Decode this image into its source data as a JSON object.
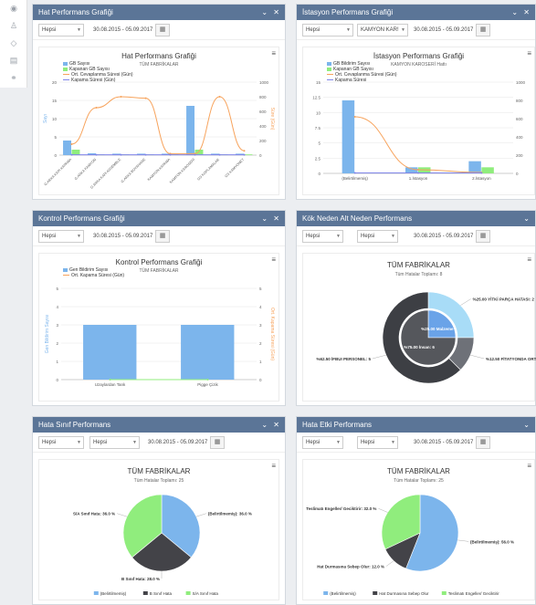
{
  "sidebar": {
    "icons": [
      "dashboard-icon",
      "users-icon",
      "tag-icon",
      "book-icon",
      "link-icon"
    ]
  },
  "panels": [
    {
      "title": "Hat Performans Grafiği",
      "controls": "⌄ ✕",
      "filters": {
        "select1": "Hepsi",
        "date": "30.08.2015 - 05.09.2017"
      },
      "chart": {
        "title": "Hat Performans Grafiği",
        "subtitle": "TÜM FABRİKALAR",
        "legend": [
          "GB Sayısı",
          "Kapanan GB Sayısı",
          "Ort. Cevaplanma Süresi (Gün)",
          "Kapama Süresi (Gün)"
        ],
        "ylabel": "Sayı",
        "y2label": "Süre (Gün)"
      }
    },
    {
      "title": "İstasyon Performans Grafiği",
      "controls": "⌄ ✕",
      "filters": {
        "select1": "Hepsi",
        "select2": "KAMYON KAR!",
        "date": "30.08.2015 - 05.09.2017"
      },
      "chart": {
        "title": "İstasyon Performans Grafiği",
        "subtitle": "KAMYON KAROSERİ Hattı",
        "legend": [
          "GB Bildirim Sayısı",
          "Kapanan GB Sayısı",
          "Ort. Cevaplanma Süresi (Gün)",
          "Kapama Süresi"
        ],
        "ylabel": "Sayı"
      }
    },
    {
      "title": "Kontrol Performans Grafiği",
      "controls": "⌄ ✕",
      "filters": {
        "select1": "Hepsi",
        "date": "30.08.2015 - 05.09.2017"
      },
      "chart": {
        "title": "Kontrol Performans Grafiği",
        "subtitle": "TÜM FABRİKALAR",
        "legend": [
          "Gen Bildirim Sayısı",
          "Ort. Kapama Süresi (Gün)"
        ],
        "ylabel": "Gen Bildirim Sayısı",
        "y2label": "Ort. Kapama Süresi (Gün)"
      }
    },
    {
      "title": "Kök Neden Alt Neden Performans",
      "controls": "⌄",
      "filters": {
        "select1": "Hepsi",
        "select2": "Hepsi",
        "date": "30.08.2015 - 05.09.2017"
      },
      "chart": {
        "title": "TÜM FABRİKALAR",
        "subtitle": "Tüm Hatalar Toplamı: 8"
      }
    },
    {
      "title": "Hata Sınıf Performans",
      "controls": "⌄ ✕",
      "filters": {
        "select1": "Hepsi",
        "select2": "Hepsi",
        "date": "30.08.2015 - 05.09.2017"
      },
      "chart": {
        "title": "TÜM FABRİKALAR",
        "subtitle": "Tüm Hatalar Toplamı: 25"
      }
    },
    {
      "title": "Hata Etki Performans",
      "controls": "⌄",
      "filters": {
        "select1": "Hepsi",
        "select2": "Hepsi",
        "date": "30.08.2015 - 05.09.2017"
      },
      "chart": {
        "title": "TÜM FABRİKALAR",
        "subtitle": "Tüm Hatalar Toplamı: 25"
      }
    }
  ],
  "chart_data": [
    {
      "type": "bar",
      "title": "Hat Performans Grafiği",
      "subtitle": "TÜM FABRİKALAR",
      "categories": [
        "G.ARKA KAPI KAPAMA",
        "G.ARKA KAMYON",
        "G.ARKA KAPI ASSEMBLE",
        "G.ARKA BOYAHANE",
        "KAMYON KAPAMA",
        "KAMYON KAROSERİ",
        "GS KOPLAMALAR",
        "GS KAMYONET"
      ],
      "series": [
        {
          "name": "GB Sayısı",
          "kind": "bar",
          "axis": "left",
          "values": [
            4,
            0.5,
            0.4,
            0.4,
            0.4,
            13.5,
            0.4,
            0.4
          ]
        },
        {
          "name": "Kapanan GB Sayısı",
          "kind": "bar",
          "axis": "left",
          "values": [
            1.5,
            0.2,
            0.2,
            0.2,
            0.2,
            1.5,
            0.2,
            0.2
          ]
        },
        {
          "name": "Ort. Cevaplanma Süresi (Gün)",
          "kind": "line",
          "axis": "right",
          "values": [
            150,
            650,
            800,
            780,
            20,
            20,
            800,
            60
          ]
        },
        {
          "name": "Kapama Süresi (Gün)",
          "kind": "line",
          "axis": "right",
          "values": [
            5,
            5,
            5,
            5,
            5,
            5,
            5,
            5
          ]
        }
      ],
      "ylim": [
        0,
        20
      ],
      "yticks": [
        0,
        5,
        10,
        15,
        20
      ],
      "y2lim": [
        0,
        1000
      ],
      "y2ticks": [
        0,
        200,
        400,
        600,
        800,
        1000
      ],
      "ylabel": "Sayı",
      "y2label": "Süre (Gün)"
    },
    {
      "type": "bar",
      "title": "İstasyon Performans Grafiği",
      "subtitle": "KAMYON KAROSERİ Hattı",
      "categories": [
        "(Belirtilmemiş)",
        "1.İstasyon",
        "2.İstasyon"
      ],
      "series": [
        {
          "name": "GB Bildirim Sayısı",
          "kind": "bar",
          "axis": "left",
          "values": [
            12,
            1,
            2
          ]
        },
        {
          "name": "Kapanan GB Sayısı",
          "kind": "bar",
          "axis": "left",
          "values": [
            0,
            1,
            1
          ]
        },
        {
          "name": "Ort. Cevaplanma Süresi (Gün)",
          "kind": "line",
          "axis": "right",
          "values": [
            620,
            40,
            10
          ]
        },
        {
          "name": "Kapama Süresi",
          "kind": "line",
          "axis": "right",
          "values": [
            5,
            5,
            5
          ]
        }
      ],
      "ylim": [
        0,
        15
      ],
      "yticks": [
        0,
        2.5,
        5,
        7.5,
        10,
        12.5,
        15
      ],
      "y2lim": [
        0,
        1000
      ],
      "y2ticks": [
        0,
        200,
        400,
        600,
        800,
        1000
      ]
    },
    {
      "type": "bar",
      "title": "Kontrol Performans Grafiği",
      "subtitle": "TÜM FABRİKALAR",
      "categories": [
        "Uzaylardan Tank",
        "Pigge Çizik"
      ],
      "series": [
        {
          "name": "Gen Bildirim Sayısı",
          "kind": "bar",
          "axis": "left",
          "values": [
            3,
            3
          ]
        },
        {
          "name": "Ort. Kapama Süresi (Gün)",
          "kind": "line",
          "axis": "right",
          "values": [
            0,
            0
          ]
        }
      ],
      "ylim": [
        0,
        5
      ],
      "yticks": [
        0,
        1,
        2,
        3,
        4,
        5
      ],
      "y2lim": [
        0,
        5
      ],
      "y2ticks": [
        0,
        1,
        2,
        3,
        4,
        5
      ]
    },
    {
      "type": "pie",
      "title": "TÜM FABRİKALAR",
      "subtitle": "Tüm Hatalar Toplamı: 8",
      "outer": [
        {
          "label": "%25.00 YİTKİ PARÇA HATASI: 2",
          "value": 25,
          "color": "#a8dcf7"
        },
        {
          "label": "%12.50 FİTATYONDA ORTİŞİ",
          "value": 12.5,
          "color": "#6e7178"
        },
        {
          "label": "%62.50 İFBUI PERSONEL: 5",
          "value": 62.5,
          "color": "#3d3f44"
        }
      ],
      "inner": [
        {
          "label": "%25.00 Malzeme",
          "value": 25,
          "color": "#6aa3e8"
        },
        {
          "label": "%75.00 İnsan: 6",
          "value": 75,
          "color": "#55575c"
        }
      ]
    },
    {
      "type": "pie",
      "title": "TÜM FABRİKALAR",
      "subtitle": "Tüm Hatalar Toplamı: 25",
      "slices": [
        {
          "label": "(Belirtilmemiş)",
          "text": "(Belirtilmemiş): 36.0 %",
          "value": 36,
          "color": "#7cb5ec"
        },
        {
          "label": "B Sınıf Hata",
          "text": "B Sınıf Hata: 28.0 %",
          "value": 28,
          "color": "#434348"
        },
        {
          "label": "S/A Sınıf Hata",
          "text": "S/A Sınıf Hata: 36.0 %",
          "value": 36,
          "color": "#90ed7d"
        }
      ]
    },
    {
      "type": "pie",
      "title": "TÜM FABRİKALAR",
      "subtitle": "Tüm Hatalar Toplamı: 25",
      "slices": [
        {
          "label": "(Belirtilmemiş)",
          "text": "(Belirtilmemiş): 56.0 %",
          "value": 56,
          "color": "#7cb5ec"
        },
        {
          "label": "Hat Durmasına Sebep Olur",
          "text": "Hat Durmasına Sebep Olur: 12.0 %",
          "value": 12,
          "color": "#434348"
        },
        {
          "label": "Teslimatı Engeller/ Geciktirir",
          "text": "Teslimatı Engeller/ Geciktirir: 32.0 %",
          "value": 32,
          "color": "#90ed7d"
        }
      ]
    }
  ]
}
